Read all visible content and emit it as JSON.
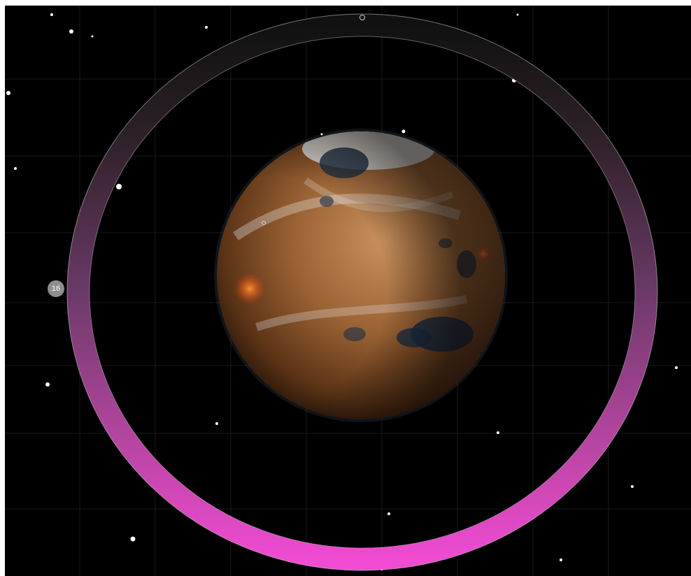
{
  "scene": {
    "background": "#000000",
    "grid_color": "#1a1a1a"
  },
  "planet": {
    "icon": "planet-icon",
    "colors": {
      "base": "#8a5a33",
      "highlight": "#c9915c",
      "shadow": "#2b1508",
      "ice": "#e3e6e8",
      "water": "#1d2f45",
      "lava": "#ff6a2a",
      "atmosphere": "#7aa3c8"
    }
  },
  "orbit_ring": {
    "gradient_top": "#111111",
    "gradient_mid": "#6b3a68",
    "gradient_bottom": "#f04bd2",
    "outline": "#cfcfcf"
  },
  "level_badge": {
    "value": "16",
    "color": "#8e8e8e"
  }
}
